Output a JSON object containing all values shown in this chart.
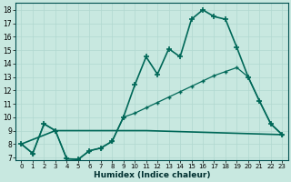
{
  "xlabel": "Humidex (Indice chaleur)",
  "bg_color": "#c8e8e0",
  "grid_color": "#b0d8d0",
  "line_color": "#006858",
  "xlim": [
    -0.5,
    23.5
  ],
  "ylim": [
    6.8,
    18.5
  ],
  "yticks": [
    7,
    8,
    9,
    10,
    11,
    12,
    13,
    14,
    15,
    16,
    17,
    18
  ],
  "xticks": [
    0,
    1,
    2,
    3,
    4,
    5,
    6,
    7,
    8,
    9,
    10,
    11,
    12,
    13,
    14,
    15,
    16,
    17,
    18,
    19,
    20,
    21,
    22,
    23
  ],
  "series": [
    {
      "x": [
        0,
        1,
        2,
        3,
        4,
        5,
        6,
        7,
        8,
        9,
        10,
        11,
        12,
        13,
        14,
        15,
        16,
        17,
        18,
        19,
        20,
        21,
        22,
        23
      ],
      "y": [
        8.0,
        7.3,
        9.5,
        9.0,
        6.9,
        6.85,
        7.5,
        7.7,
        8.2,
        10.0,
        12.4,
        14.5,
        13.2,
        15.1,
        14.5,
        17.3,
        18.0,
        17.5,
        17.3,
        15.2,
        13.0,
        11.2,
        9.5,
        8.7
      ],
      "marker": "+",
      "markersize": 4,
      "linewidth": 1.2,
      "markeredgewidth": 1.2
    },
    {
      "x": [
        0,
        1,
        2,
        3,
        4,
        5,
        6,
        7,
        8,
        9,
        10,
        11,
        12,
        13,
        14,
        15,
        16,
        17,
        18,
        19,
        20,
        21,
        22,
        23
      ],
      "y": [
        8.0,
        7.3,
        9.5,
        9.0,
        6.9,
        6.85,
        7.5,
        7.7,
        8.2,
        10.0,
        10.3,
        10.7,
        11.1,
        11.5,
        11.9,
        12.3,
        12.7,
        13.1,
        13.4,
        13.7,
        13.0,
        11.2,
        9.5,
        8.7
      ],
      "marker": "+",
      "markersize": 3,
      "linewidth": 0.9,
      "markeredgewidth": 1.0
    },
    {
      "x": [
        0,
        3,
        11,
        23
      ],
      "y": [
        8.0,
        9.0,
        9.0,
        8.7
      ],
      "marker": null,
      "markersize": 0,
      "linewidth": 1.2,
      "markeredgewidth": 0
    }
  ]
}
